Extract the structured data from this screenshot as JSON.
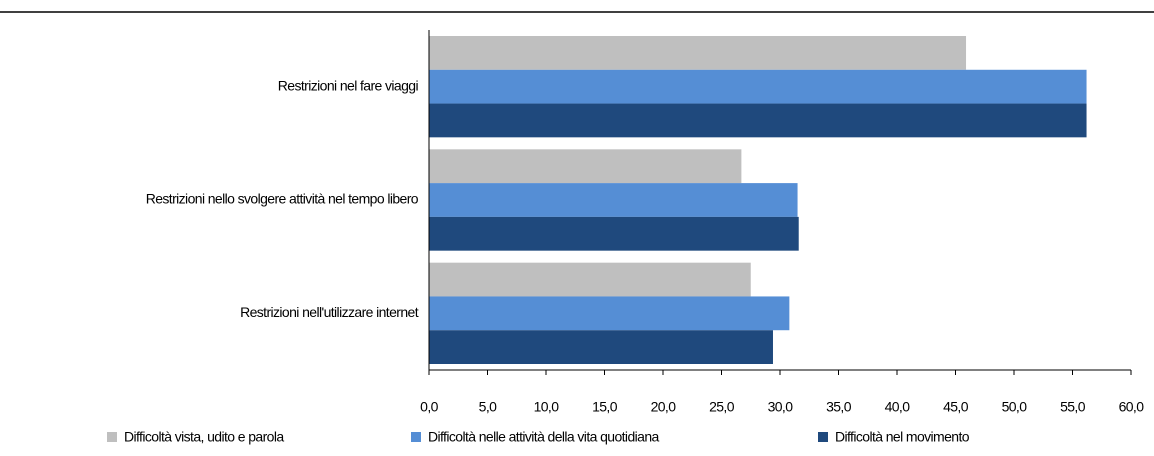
{
  "chart_data": {
    "type": "hbar",
    "categories": [
      "Restrizioni nel fare viaggi",
      "Restrizioni nello svolgere attività nel tempo libero",
      "Restrizioni nell'utilizzare internet"
    ],
    "series": [
      {
        "name": "Difficoltà vista, udito e parola",
        "color": "#bfbfbf",
        "values": [
          45.9,
          26.7,
          27.5
        ]
      },
      {
        "name": "Difficoltà nelle attività della vita quotidiana",
        "color": "#558ed5",
        "values": [
          56.2,
          31.5,
          30.8
        ]
      },
      {
        "name": "Difficoltà nel movimento",
        "color": "#1f497d",
        "values": [
          56.2,
          31.6,
          29.4
        ]
      }
    ],
    "xlim": [
      0,
      60
    ],
    "xticks": [
      {
        "value": 0,
        "label": "0,0"
      },
      {
        "value": 5,
        "label": "5,0"
      },
      {
        "value": 10,
        "label": "10,0"
      },
      {
        "value": 15,
        "label": "15,0"
      },
      {
        "value": 20,
        "label": "20,0"
      },
      {
        "value": 25,
        "label": "25,0"
      },
      {
        "value": 30,
        "label": "30,0"
      },
      {
        "value": 35,
        "label": "35,0"
      },
      {
        "value": 40,
        "label": "40,0"
      },
      {
        "value": 45,
        "label": "45,0"
      },
      {
        "value": 50,
        "label": "50,0"
      },
      {
        "value": 55,
        "label": "55,0"
      },
      {
        "value": 60,
        "label": "60,0"
      }
    ],
    "legend": "bottom"
  }
}
